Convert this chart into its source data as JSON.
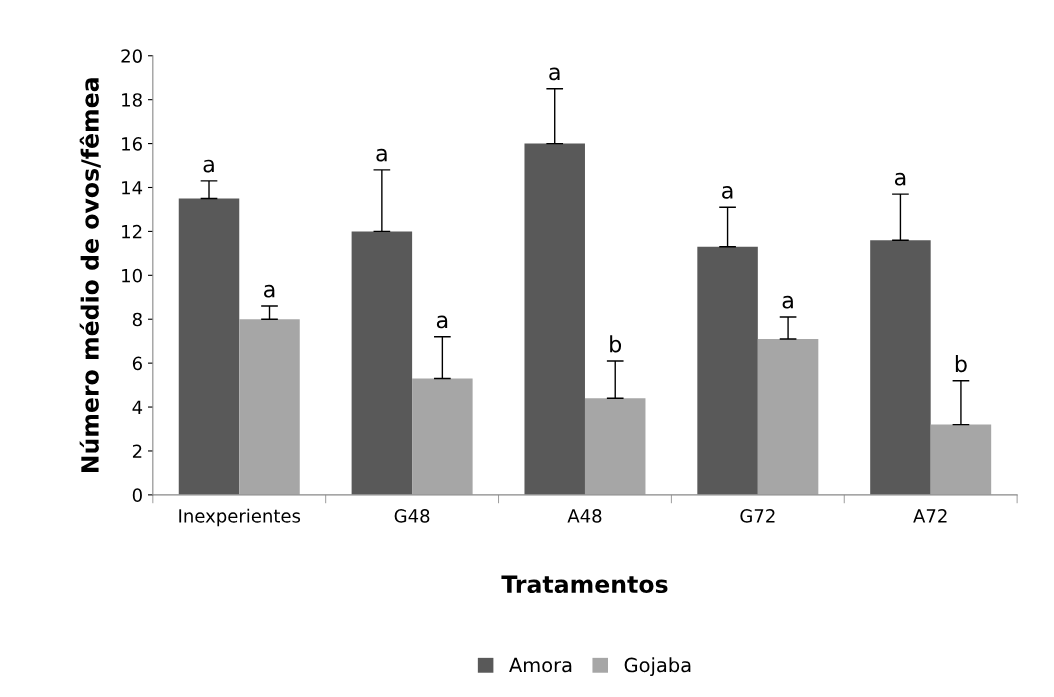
{
  "chart_data": {
    "type": "bar",
    "xlabel": "Tratamentos",
    "ylabel": "Número médio de ovos/fêmea",
    "categories": [
      "Inexperientes",
      "G48",
      "A48",
      "G72",
      "A72"
    ],
    "series": [
      {
        "name": "Amora",
        "color": "#595959",
        "values": [
          13.5,
          12.0,
          16.0,
          11.3,
          11.6
        ],
        "errors": [
          [
            13.5,
            14.3
          ],
          [
            12.0,
            14.8
          ],
          [
            16.0,
            18.5
          ],
          [
            11.3,
            13.1
          ],
          [
            11.6,
            13.7
          ]
        ],
        "value_labels": [
          "a",
          "a",
          "a",
          "a",
          "a"
        ]
      },
      {
        "name": "Gojaba",
        "color": "#a6a6a6",
        "values": [
          8.0,
          5.3,
          4.4,
          7.1,
          3.2
        ],
        "errors": [
          [
            8.0,
            8.6
          ],
          [
            5.3,
            7.2
          ],
          [
            4.4,
            6.1
          ],
          [
            7.1,
            8.1
          ],
          [
            3.2,
            5.2
          ]
        ],
        "value_labels": [
          "a",
          "a",
          "b",
          "a",
          "b"
        ]
      }
    ],
    "ylim": [
      0,
      20
    ],
    "yticks": [
      0,
      2,
      4,
      6,
      8,
      10,
      12,
      14,
      16,
      18,
      20
    ],
    "grid": false,
    "legend": "bottom"
  }
}
